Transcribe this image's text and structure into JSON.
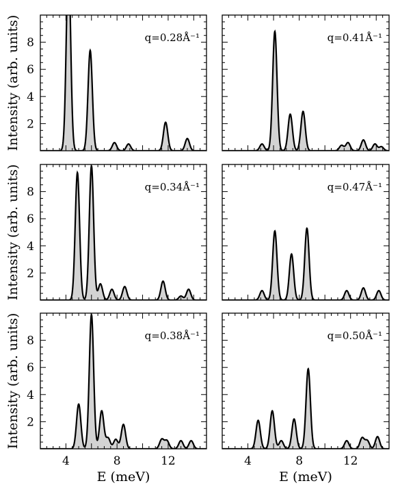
{
  "chart_data": [
    {
      "type": "line",
      "annotation": "q=0.28Å⁻¹",
      "ylabel": "Intensity (arb. units)",
      "xlabel": "",
      "xlim": [
        2,
        15
      ],
      "ylim": [
        0,
        10
      ],
      "xticks": [
        "4",
        "8",
        "12"
      ],
      "yticks": [
        "2",
        "4",
        "6",
        "8"
      ],
      "peaks": [
        {
          "x": 4.2,
          "y": 14.0
        },
        {
          "x": 5.9,
          "y": 7.4
        },
        {
          "x": 7.8,
          "y": 0.6
        },
        {
          "x": 8.9,
          "y": 0.5
        },
        {
          "x": 11.8,
          "y": 2.1
        },
        {
          "x": 13.5,
          "y": 0.9
        }
      ]
    },
    {
      "type": "line",
      "annotation": "q=0.41Å⁻¹",
      "ylabel": "",
      "xlabel": "",
      "xlim": [
        2,
        15
      ],
      "ylim": [
        0,
        10
      ],
      "xticks": [
        "4",
        "8",
        "12"
      ],
      "yticks": [],
      "peaks": [
        {
          "x": 5.1,
          "y": 0.5
        },
        {
          "x": 6.1,
          "y": 8.8
        },
        {
          "x": 7.3,
          "y": 2.7
        },
        {
          "x": 8.3,
          "y": 2.9
        },
        {
          "x": 11.3,
          "y": 0.4
        },
        {
          "x": 11.8,
          "y": 0.6
        },
        {
          "x": 13.0,
          "y": 0.8
        },
        {
          "x": 13.9,
          "y": 0.5
        },
        {
          "x": 14.4,
          "y": 0.3
        }
      ]
    },
    {
      "type": "line",
      "annotation": "q=0.34Å⁻¹",
      "ylabel": "Intensity (arb. units)",
      "xlabel": "",
      "xlim": [
        2,
        15
      ],
      "ylim": [
        0,
        10
      ],
      "xticks": [
        "4",
        "8",
        "12"
      ],
      "yticks": [
        "2",
        "4",
        "6",
        "8"
      ],
      "peaks": [
        {
          "x": 4.9,
          "y": 9.4
        },
        {
          "x": 6.0,
          "y": 9.9
        },
        {
          "x": 6.7,
          "y": 1.2
        },
        {
          "x": 7.6,
          "y": 0.8
        },
        {
          "x": 8.6,
          "y": 1.0
        },
        {
          "x": 11.6,
          "y": 1.4
        },
        {
          "x": 13.0,
          "y": 0.3
        },
        {
          "x": 13.6,
          "y": 0.8
        }
      ]
    },
    {
      "type": "line",
      "annotation": "q=0.47Å⁻¹",
      "ylabel": "",
      "xlabel": "",
      "xlim": [
        2,
        15
      ],
      "ylim": [
        0,
        10
      ],
      "xticks": [
        "4",
        "8",
        "12"
      ],
      "yticks": [],
      "peaks": [
        {
          "x": 5.1,
          "y": 0.7
        },
        {
          "x": 6.1,
          "y": 5.1
        },
        {
          "x": 7.4,
          "y": 3.4
        },
        {
          "x": 8.6,
          "y": 5.3
        },
        {
          "x": 11.7,
          "y": 0.7
        },
        {
          "x": 13.0,
          "y": 0.9
        },
        {
          "x": 14.2,
          "y": 0.7
        }
      ]
    },
    {
      "type": "line",
      "annotation": "q=0.38Å⁻¹",
      "ylabel": "Intensity (arb. units)",
      "xlabel": "E (meV)",
      "xlim": [
        2,
        15
      ],
      "ylim": [
        0,
        10
      ],
      "xticks": [
        "4",
        "8",
        "12"
      ],
      "yticks": [
        "2",
        "4",
        "6",
        "8"
      ],
      "peaks": [
        {
          "x": 5.0,
          "y": 3.3
        },
        {
          "x": 6.0,
          "y": 9.9
        },
        {
          "x": 6.8,
          "y": 2.8
        },
        {
          "x": 7.3,
          "y": 0.8
        },
        {
          "x": 7.9,
          "y": 0.7
        },
        {
          "x": 8.5,
          "y": 1.8
        },
        {
          "x": 11.5,
          "y": 0.7
        },
        {
          "x": 11.9,
          "y": 0.6
        },
        {
          "x": 13.0,
          "y": 0.6
        },
        {
          "x": 13.8,
          "y": 0.6
        }
      ]
    },
    {
      "type": "line",
      "annotation": "q=0.50Å⁻¹",
      "ylabel": "",
      "xlabel": "E (meV)",
      "xlim": [
        2,
        15
      ],
      "ylim": [
        0,
        10
      ],
      "xticks": [
        "4",
        "8",
        "12"
      ],
      "yticks": [],
      "peaks": [
        {
          "x": 4.8,
          "y": 2.1
        },
        {
          "x": 5.9,
          "y": 2.8
        },
        {
          "x": 6.6,
          "y": 0.6
        },
        {
          "x": 7.6,
          "y": 2.2
        },
        {
          "x": 8.7,
          "y": 5.9
        },
        {
          "x": 11.7,
          "y": 0.6
        },
        {
          "x": 12.9,
          "y": 0.8
        },
        {
          "x": 13.3,
          "y": 0.6
        },
        {
          "x": 14.1,
          "y": 0.9
        }
      ]
    }
  ]
}
